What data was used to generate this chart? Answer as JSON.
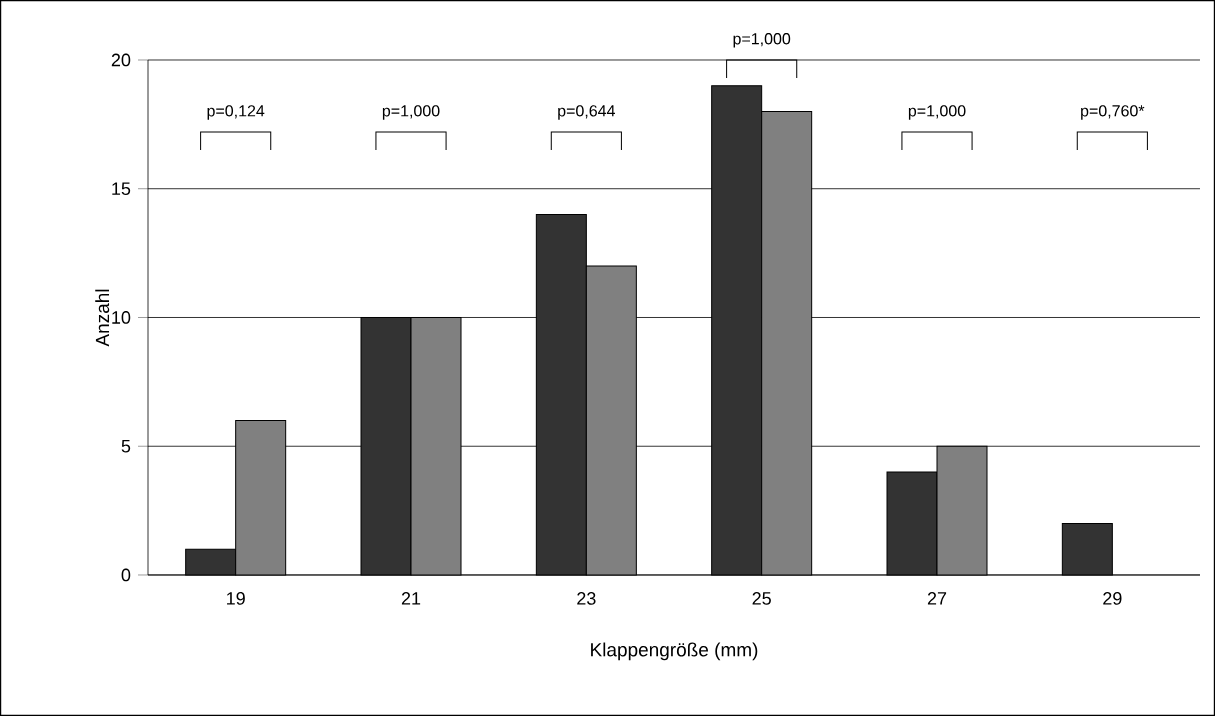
{
  "chart_data": {
    "type": "bar",
    "xlabel": "Klappengröße (mm)",
    "ylabel": "Anzahl",
    "categories": [
      "19",
      "21",
      "23",
      "25",
      "27",
      "29"
    ],
    "series": [
      {
        "color": "#333333",
        "values": [
          1,
          10,
          14,
          19,
          4,
          2
        ]
      },
      {
        "color": "#808080",
        "values": [
          6,
          10,
          12,
          18,
          5,
          null
        ]
      }
    ],
    "ylim": [
      0,
      20
    ],
    "yticks": [
      0,
      5,
      10,
      15,
      20
    ],
    "grid": "y",
    "annotations": [
      "p=0,124",
      "p=1,000",
      "p=0,644",
      "p=1,000",
      "p=1,000",
      "p=0,760*"
    ]
  }
}
